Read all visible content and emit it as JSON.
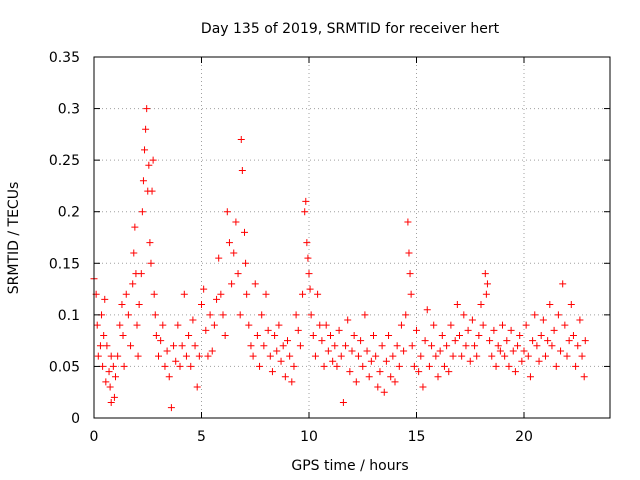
{
  "chart_data": {
    "type": "scatter",
    "title": "Day 135 of 2019, SRMTID for receiver hert",
    "xlabel": "GPS time / hours",
    "ylabel": "SRMTID / TECUs",
    "xlim": [
      0,
      24
    ],
    "ylim": [
      0,
      0.35
    ],
    "xticks": [
      0,
      5,
      10,
      15,
      20
    ],
    "xtick_labels": [
      "0",
      "5",
      "10",
      "15",
      "20"
    ],
    "yticks": [
      0,
      0.05,
      0.1,
      0.15,
      0.2,
      0.25,
      0.3,
      0.35
    ],
    "ytick_labels": [
      "0",
      "0.05",
      "0.1",
      "0.15",
      "0.2",
      "0.25",
      "0.3",
      "0.35"
    ],
    "grid": true,
    "marker": "plus",
    "color": "#ff0000",
    "series": [
      {
        "name": "SRMTID",
        "points": [
          [
            0.0,
            0.135
          ],
          [
            0.1,
            0.12
          ],
          [
            0.15,
            0.09
          ],
          [
            0.2,
            0.06
          ],
          [
            0.3,
            0.07
          ],
          [
            0.35,
            0.1
          ],
          [
            0.4,
            0.05
          ],
          [
            0.45,
            0.08
          ],
          [
            0.5,
            0.115
          ],
          [
            0.55,
            0.035
          ],
          [
            0.6,
            0.07
          ],
          [
            0.7,
            0.045
          ],
          [
            0.75,
            0.03
          ],
          [
            0.8,
            0.06
          ],
          [
            0.9,
            0.05
          ],
          [
            0.95,
            0.02
          ],
          [
            0.8,
            0.015
          ],
          [
            1.0,
            0.04
          ],
          [
            1.1,
            0.06
          ],
          [
            1.2,
            0.09
          ],
          [
            1.3,
            0.11
          ],
          [
            1.35,
            0.08
          ],
          [
            1.4,
            0.05
          ],
          [
            1.5,
            0.12
          ],
          [
            1.6,
            0.1
          ],
          [
            1.7,
            0.07
          ],
          [
            1.8,
            0.13
          ],
          [
            1.85,
            0.16
          ],
          [
            1.9,
            0.185
          ],
          [
            1.95,
            0.14
          ],
          [
            2.0,
            0.09
          ],
          [
            2.05,
            0.06
          ],
          [
            2.1,
            0.11
          ],
          [
            2.2,
            0.14
          ],
          [
            2.25,
            0.2
          ],
          [
            2.3,
            0.23
          ],
          [
            2.35,
            0.26
          ],
          [
            2.4,
            0.28
          ],
          [
            2.45,
            0.3
          ],
          [
            2.5,
            0.22
          ],
          [
            2.55,
            0.245
          ],
          [
            2.6,
            0.17
          ],
          [
            2.65,
            0.15
          ],
          [
            2.7,
            0.22
          ],
          [
            2.75,
            0.25
          ],
          [
            2.8,
            0.12
          ],
          [
            2.85,
            0.1
          ],
          [
            2.9,
            0.08
          ],
          [
            3.0,
            0.06
          ],
          [
            3.1,
            0.075
          ],
          [
            3.2,
            0.09
          ],
          [
            3.3,
            0.05
          ],
          [
            3.4,
            0.065
          ],
          [
            3.5,
            0.04
          ],
          [
            3.6,
            0.01
          ],
          [
            3.7,
            0.07
          ],
          [
            3.8,
            0.055
          ],
          [
            3.9,
            0.09
          ],
          [
            4.0,
            0.05
          ],
          [
            4.1,
            0.07
          ],
          [
            4.2,
            0.12
          ],
          [
            4.3,
            0.06
          ],
          [
            4.4,
            0.08
          ],
          [
            4.5,
            0.05
          ],
          [
            4.6,
            0.095
          ],
          [
            4.7,
            0.07
          ],
          [
            4.8,
            0.03
          ],
          [
            4.9,
            0.06
          ],
          [
            5.0,
            0.11
          ],
          [
            5.1,
            0.125
          ],
          [
            5.2,
            0.085
          ],
          [
            5.3,
            0.06
          ],
          [
            5.4,
            0.1
          ],
          [
            5.5,
            0.065
          ],
          [
            5.6,
            0.09
          ],
          [
            5.7,
            0.115
          ],
          [
            5.8,
            0.155
          ],
          [
            5.9,
            0.12
          ],
          [
            6.0,
            0.1
          ],
          [
            6.1,
            0.08
          ],
          [
            6.2,
            0.2
          ],
          [
            6.3,
            0.17
          ],
          [
            6.4,
            0.13
          ],
          [
            6.5,
            0.16
          ],
          [
            6.6,
            0.19
          ],
          [
            6.7,
            0.14
          ],
          [
            6.8,
            0.1
          ],
          [
            6.85,
            0.27
          ],
          [
            6.9,
            0.24
          ],
          [
            7.0,
            0.18
          ],
          [
            7.05,
            0.15
          ],
          [
            7.1,
            0.12
          ],
          [
            7.2,
            0.09
          ],
          [
            7.3,
            0.07
          ],
          [
            7.4,
            0.06
          ],
          [
            7.5,
            0.13
          ],
          [
            7.6,
            0.08
          ],
          [
            7.7,
            0.05
          ],
          [
            7.8,
            0.1
          ],
          [
            7.9,
            0.07
          ],
          [
            8.0,
            0.12
          ],
          [
            8.1,
            0.085
          ],
          [
            8.2,
            0.06
          ],
          [
            8.3,
            0.045
          ],
          [
            8.4,
            0.08
          ],
          [
            8.5,
            0.065
          ],
          [
            8.6,
            0.09
          ],
          [
            8.7,
            0.055
          ],
          [
            8.8,
            0.07
          ],
          [
            8.9,
            0.04
          ],
          [
            9.0,
            0.075
          ],
          [
            9.1,
            0.06
          ],
          [
            9.2,
            0.035
          ],
          [
            9.3,
            0.05
          ],
          [
            9.4,
            0.1
          ],
          [
            9.5,
            0.085
          ],
          [
            9.6,
            0.07
          ],
          [
            9.7,
            0.12
          ],
          [
            9.8,
            0.2
          ],
          [
            9.85,
            0.21
          ],
          [
            9.9,
            0.17
          ],
          [
            9.95,
            0.155
          ],
          [
            10.0,
            0.14
          ],
          [
            10.05,
            0.125
          ],
          [
            10.1,
            0.1
          ],
          [
            10.2,
            0.08
          ],
          [
            10.3,
            0.06
          ],
          [
            10.4,
            0.12
          ],
          [
            10.5,
            0.09
          ],
          [
            10.6,
            0.075
          ],
          [
            10.7,
            0.05
          ],
          [
            10.8,
            0.09
          ],
          [
            10.9,
            0.065
          ],
          [
            11.0,
            0.08
          ],
          [
            11.1,
            0.055
          ],
          [
            11.2,
            0.07
          ],
          [
            11.3,
            0.05
          ],
          [
            11.4,
            0.085
          ],
          [
            11.5,
            0.06
          ],
          [
            11.6,
            0.015
          ],
          [
            11.7,
            0.07
          ],
          [
            11.8,
            0.095
          ],
          [
            11.9,
            0.045
          ],
          [
            12.0,
            0.065
          ],
          [
            12.1,
            0.08
          ],
          [
            12.2,
            0.035
          ],
          [
            12.3,
            0.06
          ],
          [
            12.4,
            0.075
          ],
          [
            12.5,
            0.05
          ],
          [
            12.6,
            0.1
          ],
          [
            12.7,
            0.065
          ],
          [
            12.8,
            0.04
          ],
          [
            12.9,
            0.055
          ],
          [
            13.0,
            0.08
          ],
          [
            13.1,
            0.06
          ],
          [
            13.2,
            0.03
          ],
          [
            13.3,
            0.045
          ],
          [
            13.4,
            0.07
          ],
          [
            13.5,
            0.025
          ],
          [
            13.6,
            0.055
          ],
          [
            13.7,
            0.08
          ],
          [
            13.8,
            0.04
          ],
          [
            13.9,
            0.06
          ],
          [
            14.0,
            0.035
          ],
          [
            14.1,
            0.07
          ],
          [
            14.2,
            0.05
          ],
          [
            14.3,
            0.09
          ],
          [
            14.4,
            0.065
          ],
          [
            14.5,
            0.1
          ],
          [
            14.6,
            0.19
          ],
          [
            14.65,
            0.16
          ],
          [
            14.7,
            0.14
          ],
          [
            14.75,
            0.12
          ],
          [
            14.8,
            0.07
          ],
          [
            14.9,
            0.05
          ],
          [
            15.0,
            0.085
          ],
          [
            15.1,
            0.045
          ],
          [
            15.2,
            0.06
          ],
          [
            15.3,
            0.03
          ],
          [
            15.4,
            0.075
          ],
          [
            15.5,
            0.105
          ],
          [
            15.6,
            0.05
          ],
          [
            15.7,
            0.07
          ],
          [
            15.8,
            0.09
          ],
          [
            15.9,
            0.06
          ],
          [
            16.0,
            0.04
          ],
          [
            16.1,
            0.065
          ],
          [
            16.2,
            0.08
          ],
          [
            16.3,
            0.05
          ],
          [
            16.4,
            0.07
          ],
          [
            16.5,
            0.045
          ],
          [
            16.6,
            0.09
          ],
          [
            16.7,
            0.06
          ],
          [
            16.8,
            0.075
          ],
          [
            16.9,
            0.11
          ],
          [
            17.0,
            0.08
          ],
          [
            17.1,
            0.06
          ],
          [
            17.2,
            0.1
          ],
          [
            17.3,
            0.07
          ],
          [
            17.4,
            0.085
          ],
          [
            17.5,
            0.055
          ],
          [
            17.6,
            0.095
          ],
          [
            17.7,
            0.07
          ],
          [
            17.8,
            0.06
          ],
          [
            17.9,
            0.08
          ],
          [
            18.0,
            0.11
          ],
          [
            18.1,
            0.09
          ],
          [
            18.2,
            0.14
          ],
          [
            18.25,
            0.12
          ],
          [
            18.3,
            0.13
          ],
          [
            18.4,
            0.075
          ],
          [
            18.5,
            0.06
          ],
          [
            18.6,
            0.085
          ],
          [
            18.7,
            0.05
          ],
          [
            18.8,
            0.07
          ],
          [
            18.9,
            0.065
          ],
          [
            19.0,
            0.09
          ],
          [
            19.1,
            0.06
          ],
          [
            19.2,
            0.075
          ],
          [
            19.3,
            0.05
          ],
          [
            19.4,
            0.085
          ],
          [
            19.5,
            0.065
          ],
          [
            19.6,
            0.045
          ],
          [
            19.7,
            0.07
          ],
          [
            19.8,
            0.08
          ],
          [
            19.9,
            0.055
          ],
          [
            20.0,
            0.065
          ],
          [
            20.1,
            0.09
          ],
          [
            20.2,
            0.06
          ],
          [
            20.3,
            0.04
          ],
          [
            20.4,
            0.075
          ],
          [
            20.5,
            0.1
          ],
          [
            20.6,
            0.07
          ],
          [
            20.7,
            0.055
          ],
          [
            20.8,
            0.08
          ],
          [
            20.9,
            0.095
          ],
          [
            21.0,
            0.06
          ],
          [
            21.1,
            0.075
          ],
          [
            21.2,
            0.11
          ],
          [
            21.3,
            0.07
          ],
          [
            21.4,
            0.085
          ],
          [
            21.5,
            0.05
          ],
          [
            21.6,
            0.1
          ],
          [
            21.7,
            0.065
          ],
          [
            21.8,
            0.13
          ],
          [
            21.9,
            0.09
          ],
          [
            22.0,
            0.06
          ],
          [
            22.1,
            0.075
          ],
          [
            22.2,
            0.11
          ],
          [
            22.3,
            0.08
          ],
          [
            22.4,
            0.05
          ],
          [
            22.5,
            0.07
          ],
          [
            22.6,
            0.095
          ],
          [
            22.7,
            0.06
          ],
          [
            22.8,
            0.04
          ],
          [
            22.85,
            0.075
          ]
        ]
      }
    ]
  }
}
